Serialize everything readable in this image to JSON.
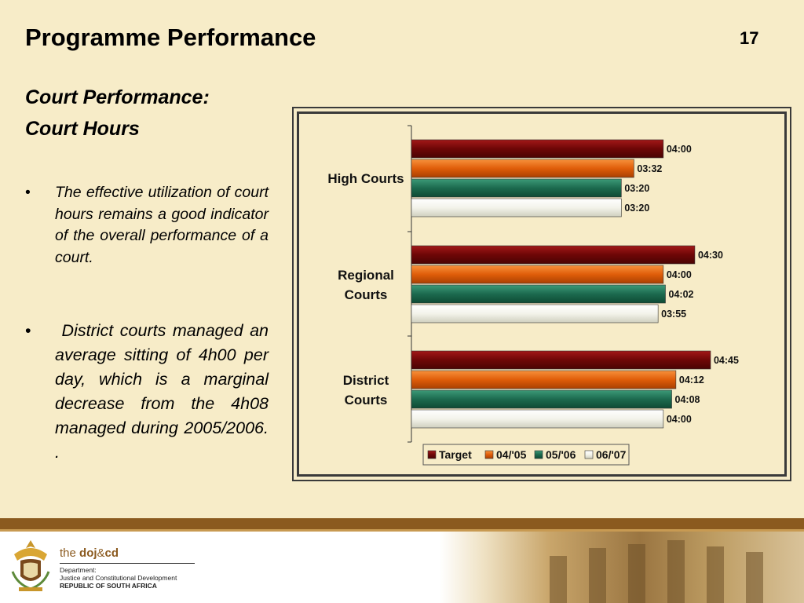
{
  "slide": {
    "title": "Programme Performance",
    "page_number": "17",
    "subtitle_line1": "Court Performance:",
    "subtitle_line2": "Court Hours",
    "bullets": [
      "The effective utilization of court hours remains a good indicator of the overall performance of a court.",
      " District courts managed an average sitting of 4h00 per day, which is a marginal decrease from the 4h08 managed during 2005/2006. ."
    ],
    "bullet_symbol": "•"
  },
  "footer": {
    "brand_prefix": "the ",
    "brand_name": "doj",
    "brand_amp": "&",
    "brand_suffix": "cd",
    "dept_line1": "Department:",
    "dept_line2": "Justice and Constitutional Development",
    "dept_line3": "REPUBLIC OF SOUTH AFRICA"
  },
  "chart_data": {
    "type": "bar",
    "orientation": "horizontal",
    "title": "",
    "xlabel": "",
    "ylabel": "",
    "categories": [
      "High Courts",
      "Regional Courts",
      "District Courts"
    ],
    "category_lines": [
      [
        "High Courts"
      ],
      [
        "Regional",
        "Courts"
      ],
      [
        "District",
        "Courts"
      ]
    ],
    "series": [
      {
        "name": "Target",
        "values": [
          4.0,
          4.5,
          4.75
        ],
        "labels": [
          "04:00",
          "04:30",
          "04:45"
        ],
        "color": "#7a0c0c"
      },
      {
        "name": "04/'05",
        "values": [
          3.5333,
          4.0,
          4.2
        ],
        "labels": [
          "03:32",
          "04:00",
          "04:12"
        ],
        "color": "#e4650f"
      },
      {
        "name": "05/'06",
        "values": [
          3.3333,
          4.0333,
          4.1333
        ],
        "labels": [
          "03:20",
          "04:02",
          "04:08"
        ],
        "color": "#1f6e52"
      },
      {
        "name": "06/'07",
        "values": [
          3.3333,
          3.9167,
          4.0
        ],
        "labels": [
          "03:20",
          "03:55",
          "04:00"
        ],
        "color": "#f2f2ea"
      }
    ],
    "xlim": [
      0,
      4.8
    ],
    "grid": false,
    "legend": "bottom"
  }
}
